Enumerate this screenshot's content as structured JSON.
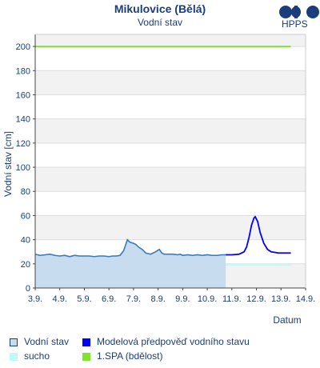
{
  "header": {
    "title": "Mikulovice (Bělá)",
    "subtitle": "Vodní stav",
    "logo_text": "HPPS"
  },
  "legend": {
    "items": [
      {
        "label": "Vodní stav",
        "color": "#c8dcf0"
      },
      {
        "label": "Modelová předpověď vodního stavu",
        "color": "#0000ff"
      },
      {
        "label": "sucho",
        "color": "#bffafa"
      },
      {
        "label": "1.SPA (bdělost)",
        "color": "#7fe62e"
      }
    ]
  },
  "chart_data": {
    "type": "line",
    "title": "Mikulovice (Bělá)",
    "subtitle": "Vodní stav",
    "xlabel": "Datum",
    "ylabel": "Vodní stav [cm]",
    "ylim": [
      0,
      210
    ],
    "xlim": [
      3,
      14
    ],
    "x_ticks": [
      3,
      4,
      5,
      6,
      7,
      8,
      9,
      10,
      11,
      12,
      13,
      14
    ],
    "x_tick_labels": [
      "3.9.",
      "4.9.",
      "5.9.",
      "6.9.",
      "7.9.",
      "8.9.",
      "9.9.",
      "10.9.",
      "11.9.",
      "12.9.",
      "13.9.",
      "14.9."
    ],
    "y_ticks": [
      0,
      20,
      40,
      60,
      80,
      100,
      120,
      140,
      160,
      180,
      200
    ],
    "grid": true,
    "colors": {
      "observed_line": "#3a7ab8",
      "observed_fill": "#c8dcf0",
      "forecast": "#0000ff",
      "drought": "#bffafa",
      "spa1": "#7fe62e",
      "band": "#f2f2f2",
      "axis_text": "#1a3d7c"
    },
    "thresholds": {
      "spa1": 200,
      "drought": 19
    },
    "series": [
      {
        "name": "Vodní stav",
        "x": [
          3.0,
          3.2,
          3.4,
          3.6,
          3.8,
          4.0,
          4.2,
          4.4,
          4.6,
          4.8,
          5.0,
          5.2,
          5.4,
          5.6,
          5.8,
          6.0,
          6.15,
          6.3,
          6.45,
          6.6,
          6.75,
          6.85,
          7.0,
          7.1,
          7.2,
          7.35,
          7.5,
          7.7,
          7.9,
          8.05,
          8.15,
          8.25,
          8.4,
          8.6,
          8.8,
          8.9,
          9.0,
          9.2,
          9.4,
          9.6,
          9.8,
          10.0,
          10.2,
          10.4,
          10.6,
          10.75
        ],
        "y": [
          28,
          27,
          27.5,
          28,
          27,
          26.5,
          27,
          26,
          27,
          26.5,
          26.5,
          26.5,
          26,
          26.5,
          26.5,
          26,
          26.5,
          26.5,
          27,
          31,
          40,
          38,
          37,
          36,
          34,
          32,
          29,
          28,
          30,
          32,
          29,
          28,
          28,
          28,
          27.5,
          28,
          27,
          27.5,
          27,
          27.5,
          27,
          27.5,
          27,
          27,
          27.5,
          27.5
        ]
      },
      {
        "name": "Modelová předpověď vodního stavu",
        "x": [
          10.75,
          11.0,
          11.3,
          11.5,
          11.6,
          11.7,
          11.8,
          11.9,
          11.95,
          12.05,
          12.15,
          12.3,
          12.45,
          12.6,
          12.75,
          12.9,
          13.1,
          13.3,
          13.4
        ],
        "y": [
          27.5,
          27.5,
          28,
          30,
          34,
          42,
          52,
          58,
          59,
          55,
          46,
          37,
          32,
          30,
          29.5,
          29,
          29,
          29,
          29
        ]
      }
    ]
  }
}
